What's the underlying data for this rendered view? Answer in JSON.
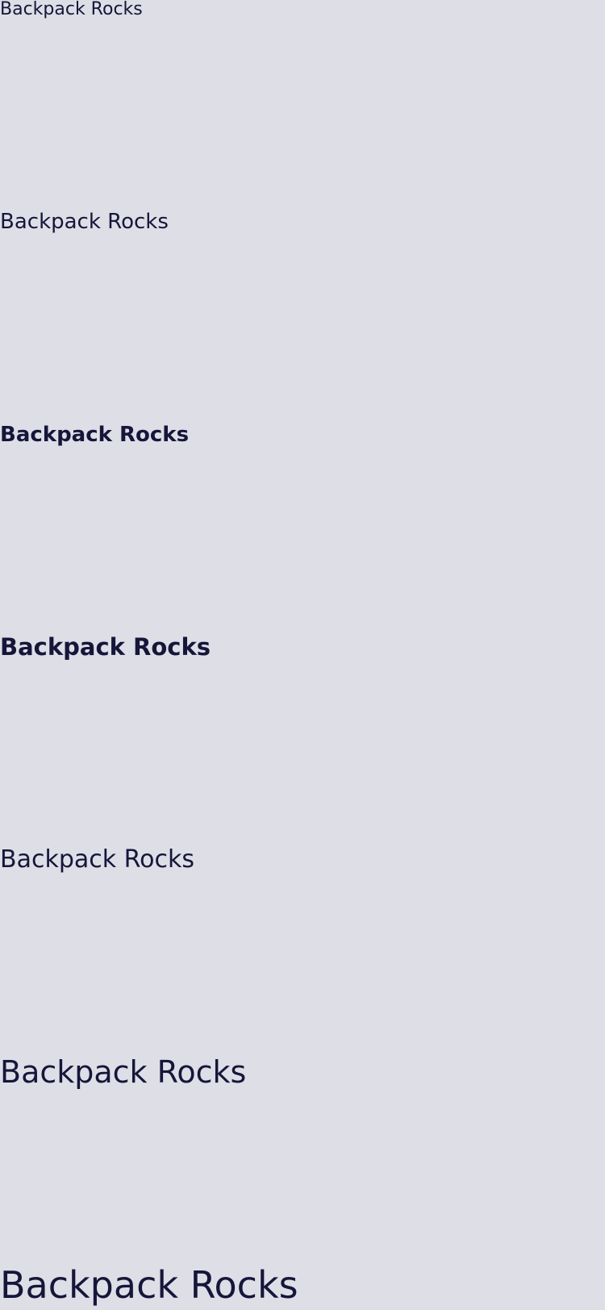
{
  "background_color": "#dedee7",
  "text_color": "#16163a",
  "samples": [
    {
      "text": "Backpack Rocks"
    },
    {
      "text": "Backpack Rocks"
    },
    {
      "text": "Backpack Rocks"
    },
    {
      "text": "Backpack Rocks"
    },
    {
      "text": "Backpack Rocks"
    },
    {
      "text": "Backpack Rocks"
    },
    {
      "text": "Backpack Rocks"
    }
  ]
}
